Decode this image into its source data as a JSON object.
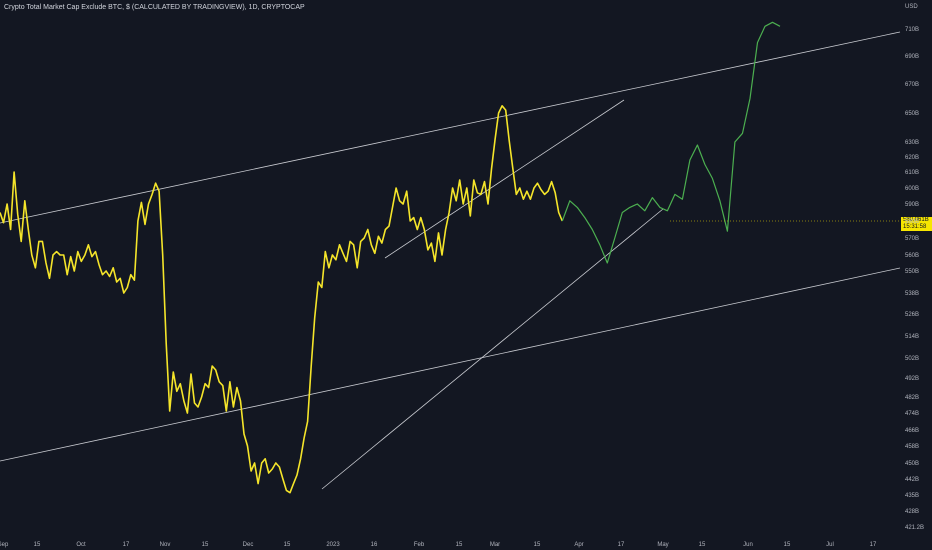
{
  "chart_data": {
    "type": "line",
    "title": "Crypto Total Market Cap Exclude BTC, $ (CALCULATED BY TRADINGVIEW), 1D, CRYPTOCAP",
    "currency_label": "USD",
    "price_ticks": [
      "710B",
      "690B",
      "670B",
      "650B",
      "630B",
      "620B",
      "610B",
      "600B",
      "590B",
      "580B",
      "570B",
      "560B",
      "550B",
      "538B",
      "526B",
      "514B",
      "502B",
      "492B",
      "482B",
      "474B",
      "466B",
      "458B",
      "450B",
      "442B",
      "435B",
      "428B",
      "421.2B"
    ],
    "last_price": "580.061B",
    "countdown": "15:31:58",
    "x_ticks": [
      "Sep",
      "15",
      "Oct",
      "17",
      "Nov",
      "15",
      "Dec",
      "15",
      "2023",
      "16",
      "Feb",
      "15",
      "Mar",
      "15",
      "Apr",
      "17",
      "May",
      "15",
      "Jun",
      "15",
      "Jul",
      "17"
    ],
    "series": [
      {
        "style": "actual",
        "color": "#f5e52a",
        "values": [
          585,
          579,
          590,
          575,
          610,
          584,
          568,
          592,
          575,
          560,
          552,
          568,
          568,
          555,
          546,
          560,
          562,
          560,
          560,
          548,
          559,
          550,
          562,
          556,
          560,
          566,
          559,
          562,
          554,
          548,
          550,
          547,
          552,
          544,
          546,
          538,
          541,
          548,
          545,
          580,
          591,
          578,
          590,
          596,
          603,
          598,
          560,
          510,
          475,
          495,
          485,
          489,
          480,
          474,
          494,
          479,
          477,
          482,
          489,
          487,
          498,
          496,
          490,
          488,
          475,
          490,
          477,
          487,
          480,
          464,
          458,
          446,
          450,
          440,
          450,
          452,
          445,
          447,
          450,
          448,
          442,
          437,
          436,
          440,
          444,
          452,
          462,
          470,
          498,
          524,
          544,
          541,
          562,
          552,
          560,
          557,
          566,
          561,
          556,
          568,
          566,
          552,
          568,
          570,
          575,
          566,
          561,
          571,
          567,
          575,
          577,
          588,
          600,
          592,
          590,
          598,
          580,
          582,
          575,
          582,
          575,
          563,
          567,
          556,
          573,
          560,
          575,
          585,
          600,
          592,
          605,
          590,
          600,
          583,
          605,
          597,
          596,
          604,
          590,
          612,
          632,
          650,
          655,
          652,
          631,
          613,
          596,
          600,
          593,
          598,
          593,
          600,
          603,
          599,
          596,
          598,
          604,
          597,
          585,
          580
        ],
        "x_start": 0,
        "x_end": 173
      },
      {
        "style": "projection",
        "color": "#4caf50",
        "values": [
          580,
          592,
          588,
          582,
          575,
          566,
          555,
          570,
          585,
          588,
          590,
          586,
          594,
          588,
          586,
          596,
          593,
          618,
          628,
          615,
          606,
          592,
          574,
          630,
          636,
          660,
          700,
          712,
          715,
          712
        ],
        "x_start": 173,
        "x_end": 240
      }
    ],
    "trendlines": [
      {
        "name": "upper-channel",
        "from": [
          "Sep 1",
          595
        ],
        "to": [
          "Jul 31",
          712
        ]
      },
      {
        "name": "lower-channel",
        "from": [
          "Sep 1",
          455
        ],
        "to": [
          "Jul 31",
          548
        ]
      },
      {
        "name": "inner-upper",
        "from": [
          "Jan 13",
          560
        ],
        "to": [
          "Apr 17",
          657
        ]
      },
      {
        "name": "inner-lower",
        "from": [
          "Jan 1",
          437
        ],
        "to": [
          "May 6",
          590
        ]
      }
    ],
    "ylim": [
      421.2,
      720
    ],
    "scale": "log",
    "grid": false,
    "legend": "none"
  }
}
